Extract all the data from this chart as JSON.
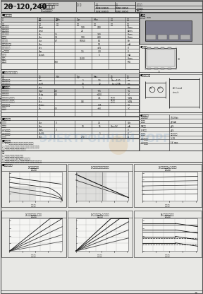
{
  "page_bg": "#d8d8d8",
  "paper_bg": "#e8e8e5",
  "text_dark": "#1a1a1a",
  "text_mid": "#333333",
  "text_light": "#555555",
  "line_color": "#444444",
  "table_bg": "#dcdcda",
  "watermark_color": "#5588bb",
  "watermark_alpha": 0.18,
  "watermark_text": "ЭЛЕКТРОННЫЙ ТОРГ",
  "page_num": "28"
}
